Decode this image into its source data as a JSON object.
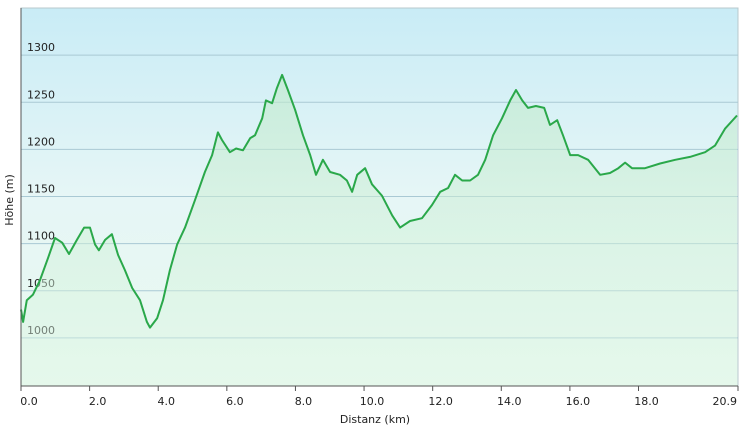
{
  "chart_data": {
    "type": "line",
    "x_label": "Distanz  (km)",
    "y_label": "Höhe (m)",
    "xlim": [
      0,
      20.9
    ],
    "ylim": [
      949,
      1350
    ],
    "xticks": [
      {
        "value": 0,
        "label": "0.0"
      },
      {
        "value": 2,
        "label": "2.0"
      },
      {
        "value": 4,
        "label": "4.0"
      },
      {
        "value": 6,
        "label": "6.0"
      },
      {
        "value": 8,
        "label": "8.0"
      },
      {
        "value": 10,
        "label": "10.0"
      },
      {
        "value": 12,
        "label": "12.0"
      },
      {
        "value": 14,
        "label": "14.0"
      },
      {
        "value": 16,
        "label": "16.0"
      },
      {
        "value": 18,
        "label": "18.0"
      },
      {
        "value": 20.9,
        "label": "20.9"
      }
    ],
    "yticks": [
      1000,
      1050,
      1100,
      1150,
      1200,
      1250,
      1300
    ],
    "grid": true,
    "x": [
      0.0,
      0.06,
      0.17,
      0.35,
      0.55,
      0.79,
      0.99,
      1.2,
      1.4,
      1.63,
      1.84,
      2.01,
      2.16,
      2.27,
      2.45,
      2.65,
      2.83,
      3.03,
      3.24,
      3.47,
      3.67,
      3.76,
      3.97,
      4.14,
      4.34,
      4.55,
      4.78,
      5.07,
      5.36,
      5.57,
      5.74,
      5.86,
      6.09,
      6.27,
      6.47,
      6.68,
      6.82,
      7.03,
      7.14,
      7.32,
      7.46,
      7.61,
      7.78,
      7.99,
      8.22,
      8.43,
      8.6,
      8.8,
      9.01,
      9.3,
      9.5,
      9.65,
      9.8,
      10.03,
      10.23,
      10.52,
      10.82,
      11.05,
      11.34,
      11.69,
      11.98,
      12.22,
      12.45,
      12.65,
      12.86,
      13.09,
      13.32,
      13.53,
      13.76,
      14.02,
      14.26,
      14.43,
      14.61,
      14.78,
      15.01,
      15.25,
      15.42,
      15.63,
      15.8,
      16.01,
      16.24,
      16.53,
      16.88,
      17.17,
      17.41,
      17.61,
      17.81,
      18.19,
      18.63,
      19.07,
      19.5,
      19.94,
      20.23,
      20.52,
      20.87
    ],
    "series": [
      {
        "color": "#2aa84a",
        "values": [
          1030,
          1017,
          1040,
          1046,
          1061,
          1085,
          1106,
          1101,
          1089,
          1104,
          1117,
          1117,
          1099,
          1093,
          1104,
          1110,
          1088,
          1072,
          1053,
          1040,
          1017,
          1011,
          1021,
          1040,
          1072,
          1099,
          1117,
          1146,
          1176,
          1194,
          1218,
          1210,
          1197,
          1201,
          1199,
          1212,
          1215,
          1233,
          1252,
          1249,
          1265,
          1279,
          1263,
          1242,
          1215,
          1194,
          1173,
          1189,
          1176,
          1173,
          1167,
          1155,
          1173,
          1180,
          1163,
          1151,
          1130,
          1117,
          1124,
          1127,
          1141,
          1155,
          1159,
          1173,
          1167,
          1167,
          1173,
          1189,
          1215,
          1233,
          1252,
          1263,
          1252,
          1244,
          1246,
          1244,
          1226,
          1231,
          1215,
          1194,
          1194,
          1189,
          1173,
          1175,
          1180,
          1186,
          1180,
          1180,
          1185,
          1189,
          1192,
          1197,
          1204,
          1222,
          1236
        ]
      }
    ]
  }
}
